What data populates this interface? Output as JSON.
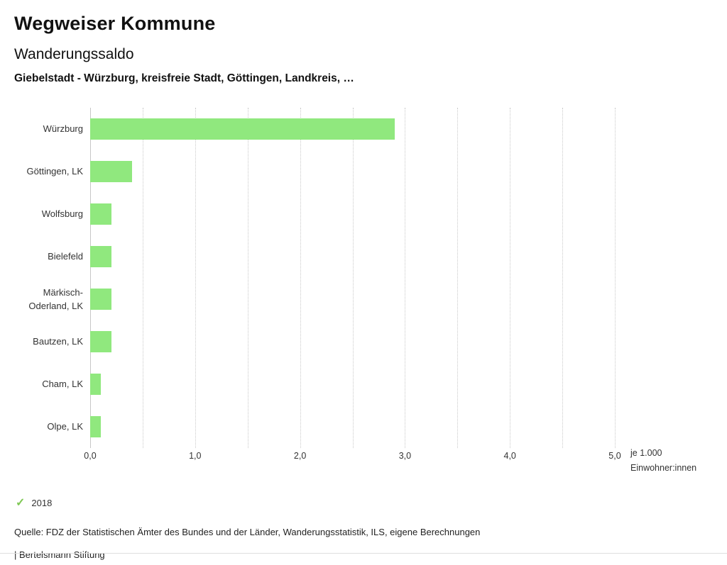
{
  "header": {
    "app_title": "Wegweiser Kommune",
    "chart_title": "Wanderungssaldo",
    "chart_subtitle": "Giebelstadt - Würzburg, kreisfreie Stadt, Göttingen, Landkreis, …"
  },
  "chart_data": {
    "type": "bar",
    "orientation": "horizontal",
    "title": "Wanderungssaldo",
    "subtitle": "Giebelstadt - Würzburg, kreisfreie Stadt, Göttingen, Landkreis, …",
    "categories": [
      "Würzburg",
      "Göttingen, LK",
      "Wolfsburg",
      "Bielefeld",
      "Märkisch-Oderland, LK",
      "Bautzen, LK",
      "Cham, LK",
      "Olpe, LK"
    ],
    "values": [
      2.9,
      0.4,
      0.2,
      0.2,
      0.2,
      0.2,
      0.1,
      0.1
    ],
    "series_name": "2018",
    "xlim": [
      0,
      5
    ],
    "grid_step": 0.5,
    "grid": "dotted vertical lines every 0.5",
    "legend_position": "bottom-left",
    "x_ticks": [
      "0,0",
      "1,0",
      "2,0",
      "3,0",
      "4,0",
      "5,0"
    ],
    "x_unit_line1": "je 1.000",
    "x_unit_line2": "Einwohner:innen"
  },
  "legend": {
    "check_icon": "✓",
    "year_label": "2018"
  },
  "footer": {
    "source": "Quelle: FDZ der Statistischen Ämter des Bundes und der Länder, Wanderungsstatistik, ILS, eigene Berechnungen",
    "branding": "| Bertelsmann Stiftung"
  },
  "colors": {
    "bar": "#90e87e",
    "check": "#7fc855",
    "grid": "#c9c9c9",
    "axis": "#c6c6c6",
    "text": "#333333"
  }
}
